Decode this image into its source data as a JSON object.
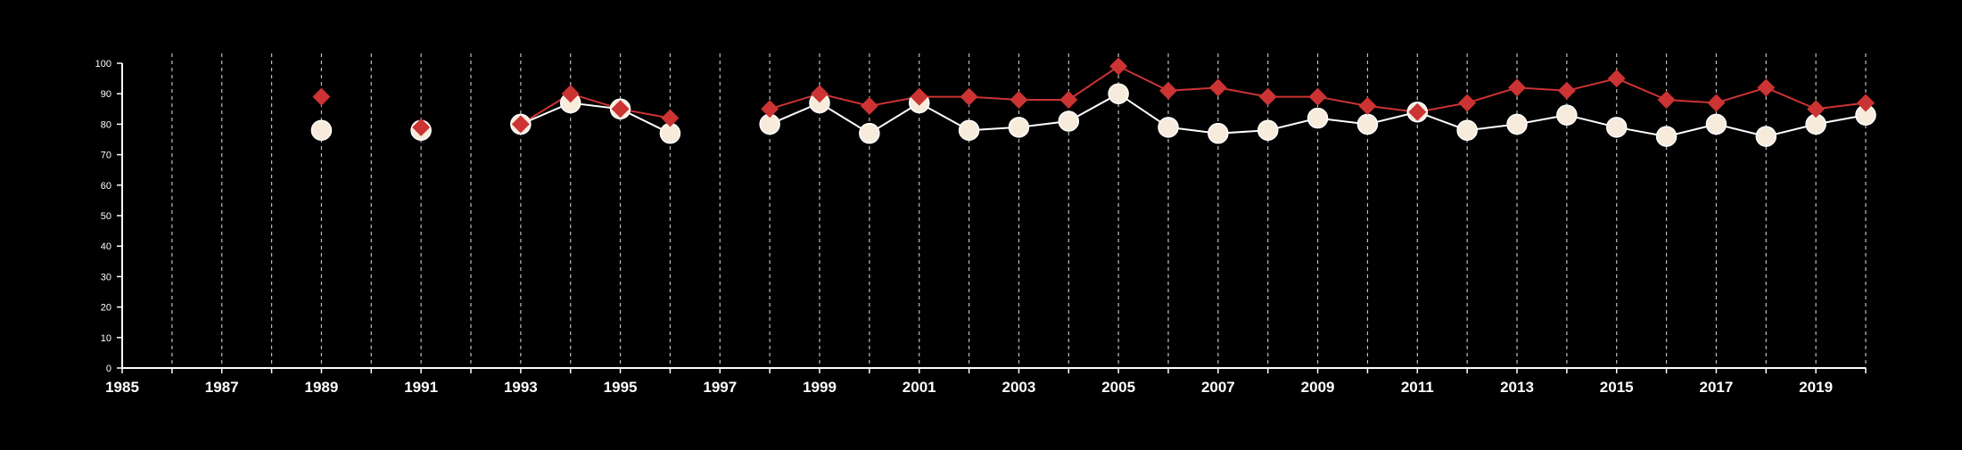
{
  "chart_data": {
    "type": "line",
    "title": "",
    "xlabel": "",
    "ylabel": "",
    "xlim": [
      1985,
      2020
    ],
    "ylim": [
      0,
      100
    ],
    "x_ticks": [
      1985,
      1987,
      1989,
      1991,
      1993,
      1995,
      1997,
      1999,
      2001,
      2003,
      2005,
      2007,
      2009,
      2011,
      2013,
      2015,
      2017,
      2019
    ],
    "y_ticks": [
      0,
      10,
      20,
      30,
      40,
      50,
      60,
      70,
      80,
      90,
      100
    ],
    "grid": "vertical dashed lines at every year",
    "legend": "none",
    "series": [
      {
        "marker": "circle",
        "color": "#f7ebdc",
        "line_color": "#ffffff",
        "points": [
          [
            1989,
            78
          ],
          [
            1991,
            78
          ],
          [
            1993,
            80
          ],
          [
            1994,
            87
          ],
          [
            1995,
            85
          ],
          [
            1996,
            77
          ],
          [
            1998,
            80
          ],
          [
            1999,
            87
          ],
          [
            2000,
            77
          ],
          [
            2001,
            87
          ],
          [
            2002,
            78
          ],
          [
            2003,
            79
          ],
          [
            2004,
            81
          ],
          [
            2005,
            90
          ],
          [
            2006,
            79
          ],
          [
            2007,
            77
          ],
          [
            2008,
            78
          ],
          [
            2009,
            82
          ],
          [
            2010,
            80
          ],
          [
            2011,
            84
          ],
          [
            2012,
            78
          ],
          [
            2013,
            80
          ],
          [
            2014,
            83
          ],
          [
            2015,
            79
          ],
          [
            2016,
            76
          ],
          [
            2017,
            80
          ],
          [
            2018,
            76
          ],
          [
            2019,
            80
          ],
          [
            2020,
            83
          ]
        ]
      },
      {
        "marker": "diamond",
        "color": "#cc3333",
        "line_color": "#cc3333",
        "points": [
          [
            1989,
            89
          ],
          [
            1991,
            79
          ],
          [
            1993,
            80
          ],
          [
            1994,
            90
          ],
          [
            1995,
            85
          ],
          [
            1996,
            82
          ],
          [
            1998,
            85
          ],
          [
            1999,
            90
          ],
          [
            2000,
            86
          ],
          [
            2001,
            89
          ],
          [
            2002,
            89
          ],
          [
            2003,
            88
          ],
          [
            2004,
            88
          ],
          [
            2005,
            99
          ],
          [
            2006,
            91
          ],
          [
            2007,
            92
          ],
          [
            2008,
            89
          ],
          [
            2009,
            89
          ],
          [
            2010,
            86
          ],
          [
            2011,
            84
          ],
          [
            2012,
            87
          ],
          [
            2013,
            92
          ],
          [
            2014,
            91
          ],
          [
            2015,
            95
          ],
          [
            2016,
            88
          ],
          [
            2017,
            87
          ],
          [
            2018,
            92
          ],
          [
            2019,
            85
          ],
          [
            2020,
            87
          ]
        ]
      }
    ]
  }
}
